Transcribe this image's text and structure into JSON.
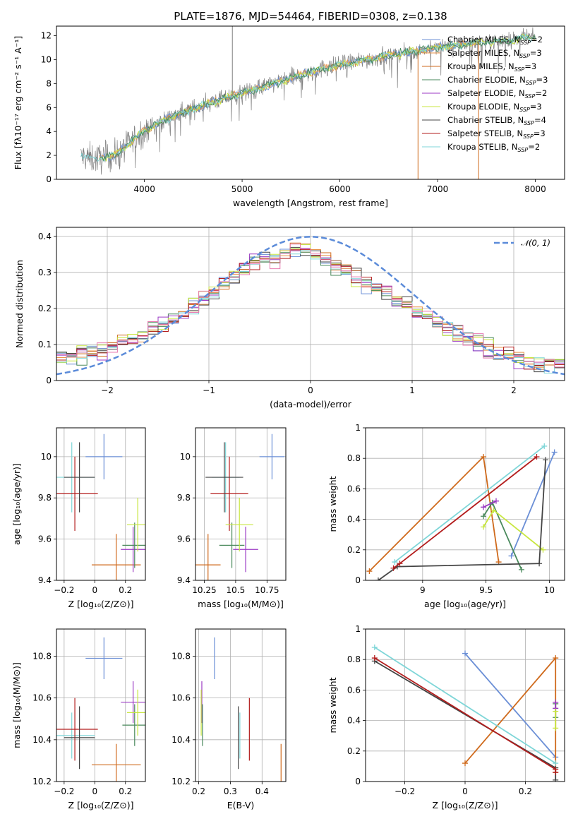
{
  "figure": {
    "title": "PLATE=1876, MJD=54464, FIBERID=0308, z=0.138"
  },
  "palette": {
    "Chabrier MILES": "#6b8fd6",
    "Salpeter MILES": "#e8934a",
    "Kroupa MILES": "#cf6a1c",
    "Chabrier ELODIE": "#4a8a5c",
    "Salpeter ELODIE": "#9b3ac4",
    "Kroupa ELODIE": "#c8e640",
    "Chabrier STELIB": "#444444",
    "Salpeter STELIB": "#b31d1d",
    "Kroupa STELIB": "#7fd6d8",
    "data": "#808080",
    "pink": "#e87ab0",
    "normal": "#5b8bd9"
  },
  "chart_data": [
    {
      "id": "spectrum",
      "type": "line",
      "xlabel": "wavelength [Angstrom, rest frame]",
      "ylabel": "Flux [fλ10⁻¹⁷ erg cm⁻² s⁻¹ A⁻¹]",
      "xlim": [
        3100,
        8300
      ],
      "ylim": [
        0,
        12.8
      ],
      "xticks": [
        4000,
        5000,
        6000,
        7000,
        8000
      ],
      "yticks": [
        0,
        2,
        4,
        6,
        8,
        10,
        12
      ],
      "legend_position": "top-right",
      "legend": [
        {
          "name": "Chabrier MILES",
          "nssp": "2"
        },
        {
          "name": "Salpeter MILES",
          "nssp": "3"
        },
        {
          "name": "Kroupa MILES",
          "nssp": "3"
        },
        {
          "name": "Chabrier ELODIE",
          "nssp": "3"
        },
        {
          "name": "Salpeter ELODIE",
          "nssp": "2"
        },
        {
          "name": "Kroupa ELODIE",
          "nssp": "3"
        },
        {
          "name": "Chabrier STELIB",
          "nssp": "4"
        },
        {
          "name": "Salpeter STELIB",
          "nssp": "3"
        },
        {
          "name": "Kroupa STELIB",
          "nssp": "2"
        }
      ],
      "continuum": {
        "x": [
          3350,
          3500,
          3700,
          3850,
          4000,
          4300,
          4600,
          5000,
          5400,
          5800,
          6200,
          6600,
          7000,
          7400,
          7800,
          8000
        ],
        "y": [
          1.9,
          1.7,
          2.0,
          3.0,
          4.1,
          5.3,
          6.2,
          7.2,
          8.2,
          9.2,
          9.9,
          10.5,
          11.0,
          11.4,
          11.7,
          11.9
        ]
      },
      "spikes": [
        {
          "x": 4900,
          "y": 12.8
        },
        {
          "x": 6800,
          "y": 0.0
        },
        {
          "x": 7420,
          "y": 0.0
        }
      ]
    },
    {
      "id": "residuals",
      "type": "line",
      "xlabel": "(data-model)/error",
      "ylabel": "Normed distribution",
      "xlim": [
        -2.5,
        2.5
      ],
      "ylim": [
        0,
        0.425
      ],
      "xticks": [
        -2,
        -1,
        0,
        1,
        2
      ],
      "yticks": [
        0.0,
        0.1,
        0.2,
        0.3,
        0.4
      ],
      "grid": true,
      "normal_label": "𝒩(0, 1)",
      "legend_position": "top-right",
      "hist_base": {
        "x": [
          -2.45,
          -2.0,
          -1.6,
          -1.2,
          -0.9,
          -0.6,
          -0.3,
          -0.1,
          0.1,
          0.4,
          0.7,
          1.0,
          1.4,
          1.8,
          2.2,
          2.5
        ],
        "y": [
          0.06,
          0.09,
          0.13,
          0.2,
          0.26,
          0.32,
          0.35,
          0.37,
          0.34,
          0.3,
          0.25,
          0.2,
          0.14,
          0.08,
          0.05,
          0.04
        ]
      }
    },
    {
      "id": "age_vs_Z",
      "type": "scatter",
      "xlabel": "Z [log₁₀(Z/Z⊙)]",
      "ylabel": "age  [log₁₀(age/yr)]",
      "xlim": [
        -0.25,
        0.33
      ],
      "ylim": [
        9.4,
        10.14
      ],
      "xticks": [
        -0.2,
        0.0,
        0.2
      ],
      "yticks": [
        9.4,
        9.6,
        9.8,
        10.0
      ],
      "grid": true
    },
    {
      "id": "age_vs_mass",
      "type": "scatter",
      "xlabel": "mass [log₁₀(M/M⊙)]",
      "ylabel": "",
      "xlim": [
        10.18,
        10.9
      ],
      "ylim": [
        9.4,
        10.14
      ],
      "xticks": [
        10.25,
        10.5,
        10.75
      ],
      "yticks": [
        9.4,
        9.6,
        9.8,
        10.0
      ],
      "grid": true
    },
    {
      "id": "mw_vs_age",
      "type": "line",
      "xlabel": "age  [log₁₀(age/yr)]",
      "ylabel": "mass weight",
      "xlim": [
        8.55,
        10.12
      ],
      "ylim": [
        0,
        1.0
      ],
      "xticks": [
        9.0,
        9.5,
        10.0
      ],
      "yticks": [
        0.0,
        0.2,
        0.4,
        0.6,
        0.8,
        1.0
      ],
      "grid": true,
      "series": [
        {
          "name": "Chabrier MILES",
          "x": [
            9.7,
            10.04
          ],
          "y": [
            0.16,
            0.84
          ]
        },
        {
          "name": "Kroupa MILES",
          "x": [
            8.58,
            9.48,
            9.6
          ],
          "y": [
            0.06,
            0.81,
            0.12
          ]
        },
        {
          "name": "Chabrier ELODIE",
          "x": [
            9.48,
            9.55,
            9.78
          ],
          "y": [
            0.42,
            0.51,
            0.07
          ]
        },
        {
          "name": "Salpeter ELODIE",
          "x": [
            9.48,
            9.58
          ],
          "y": [
            0.48,
            0.52
          ]
        },
        {
          "name": "Kroupa ELODIE",
          "x": [
            9.48,
            9.56,
            9.95
          ],
          "y": [
            0.35,
            0.46,
            0.2
          ]
        },
        {
          "name": "Chabrier STELIB",
          "x": [
            8.65,
            8.8,
            9.92,
            9.97
          ],
          "y": [
            0.0,
            0.09,
            0.11,
            0.79
          ]
        },
        {
          "name": "Salpeter STELIB",
          "x": [
            8.77,
            8.82,
            9.9
          ],
          "y": [
            0.08,
            0.11,
            0.81
          ]
        },
        {
          "name": "Kroupa STELIB",
          "x": [
            8.78,
            9.96
          ],
          "y": [
            0.12,
            0.88
          ]
        }
      ]
    },
    {
      "id": "mass_vs_Z",
      "type": "scatter",
      "xlabel": "Z [log₁₀(Z/Z⊙)]",
      "ylabel": "mass [log₁₀(M/M⊙)]",
      "xlim": [
        -0.25,
        0.33
      ],
      "ylim": [
        10.2,
        10.93
      ],
      "xticks": [
        -0.2,
        0.0,
        0.2
      ],
      "yticks": [
        10.2,
        10.4,
        10.6,
        10.8
      ],
      "grid": true
    },
    {
      "id": "mass_vs_ebv",
      "type": "scatter",
      "xlabel": "E(B-V)",
      "ylabel": "",
      "xlim": [
        0.19,
        0.475
      ],
      "ylim": [
        10.2,
        10.93
      ],
      "xticks": [
        0.2,
        0.3,
        0.4
      ],
      "yticks": [
        10.2,
        10.4,
        10.6,
        10.8
      ],
      "grid": true
    },
    {
      "id": "mw_vs_Z",
      "type": "line",
      "xlabel": "Z [log₁₀(Z/Z⊙)]",
      "ylabel": "mass weight",
      "xlim": [
        -0.33,
        0.33
      ],
      "ylim": [
        0,
        1.0
      ],
      "xticks": [
        -0.2,
        0.0,
        0.2
      ],
      "yticks": [
        0.0,
        0.2,
        0.4,
        0.6,
        0.8,
        1.0
      ],
      "grid": true,
      "series": [
        {
          "name": "Chabrier MILES",
          "x": [
            0.0,
            0.3
          ],
          "y": [
            0.84,
            0.16
          ]
        },
        {
          "name": "Kroupa MILES",
          "x": [
            0.0,
            0.3,
            0.3
          ],
          "y": [
            0.12,
            0.81,
            0.06
          ]
        },
        {
          "name": "Chabrier ELODIE",
          "x": [
            0.3,
            0.3
          ],
          "y": [
            0.42,
            0.51
          ]
        },
        {
          "name": "Salpeter ELODIE",
          "x": [
            0.3,
            0.3
          ],
          "y": [
            0.48,
            0.52
          ]
        },
        {
          "name": "Kroupa ELODIE",
          "x": [
            0.3,
            0.3
          ],
          "y": [
            0.35,
            0.46
          ]
        },
        {
          "name": "Chabrier STELIB",
          "x": [
            -0.3,
            0.3,
            0.3
          ],
          "y": [
            0.79,
            0.09,
            0.01
          ]
        },
        {
          "name": "Salpeter STELIB",
          "x": [
            -0.3,
            0.3,
            0.3
          ],
          "y": [
            0.81,
            0.08,
            0.06
          ]
        },
        {
          "name": "Kroupa STELIB",
          "x": [
            -0.3,
            0.3
          ],
          "y": [
            0.88,
            0.12
          ]
        }
      ]
    }
  ],
  "crosses": [
    {
      "name": "Chabrier MILES",
      "Z": 0.06,
      "Zerr": 0.12,
      "age": 10.0,
      "ageerr": 0.11,
      "mass": 10.79,
      "masserr": 0.1,
      "ebv": 0.25
    },
    {
      "name": "Kroupa MILES",
      "Z": 0.14,
      "Zerr": 0.16,
      "age": 9.475,
      "ageerr": 0.15,
      "mass": 10.28,
      "masserr": 0.1,
      "ebv": 0.46
    },
    {
      "name": "Kroupa STELIB",
      "Z": -0.15,
      "Zerr": 0.15,
      "age": 9.9,
      "ageerr": 0.17,
      "mass": 10.42,
      "masserr": 0.11,
      "ebv": 0.33
    },
    {
      "name": "Salpeter STELIB",
      "Z": -0.13,
      "Zerr": 0.15,
      "age": 9.82,
      "ageerr": 0.18,
      "mass": 10.45,
      "masserr": 0.15,
      "ebv": 0.36
    },
    {
      "name": "Chabrier STELIB",
      "Z": -0.1,
      "Zerr": 0.1,
      "age": 9.9,
      "ageerr": 0.17,
      "mass": 10.41,
      "masserr": 0.15,
      "ebv": 0.325
    },
    {
      "name": "Salpeter ELODIE",
      "Z": 0.25,
      "Zerr": 0.08,
      "age": 9.55,
      "ageerr": 0.11,
      "mass": 10.58,
      "masserr": 0.1,
      "ebv": 0.21
    },
    {
      "name": "Chabrier ELODIE",
      "Z": 0.26,
      "Zerr": 0.08,
      "age": 9.57,
      "ageerr": 0.11,
      "mass": 10.47,
      "masserr": 0.1,
      "ebv": 0.212
    },
    {
      "name": "Kroupa ELODIE",
      "Z": 0.28,
      "Zerr": 0.07,
      "age": 9.67,
      "ageerr": 0.13,
      "mass": 10.53,
      "masserr": 0.11,
      "ebv": 0.208
    }
  ]
}
